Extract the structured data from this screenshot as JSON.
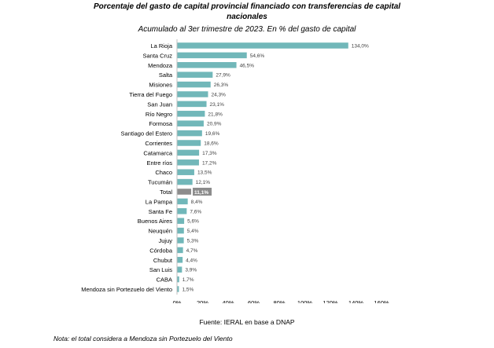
{
  "chart_data": {
    "type": "bar",
    "orientation": "horizontal",
    "title_line1": "Porcentaje del gasto de capital provincial financiado con transferencias de capital",
    "title_line2": "nacionales",
    "subtitle": "Acumulado al 3er trimestre de 2023. En % del gasto de capital",
    "categories": [
      "La Rioja",
      "Santa Cruz",
      "Mendoza",
      "Salta",
      "Misiones",
      "Tierra del Fuego",
      "San Juan",
      "Río Negro",
      "Formosa",
      "Santiago del Estero",
      "Corrientes",
      "Catamarca",
      "Entre ríos",
      "Chaco",
      "Tucumán",
      "Total",
      "La Pampa",
      "Santa Fe",
      "Buenos Aires",
      "Neuquén",
      "Jujuy",
      "Córdoba",
      "Chubut",
      "San Luis",
      "CABA",
      "Mendoza sin Portezuelo del Viento"
    ],
    "values": [
      134.0,
      54.6,
      46.5,
      27.9,
      26.3,
      24.3,
      23.1,
      21.8,
      20.9,
      19.6,
      18.6,
      17.3,
      17.2,
      13.5,
      12.1,
      11.1,
      8.4,
      7.6,
      5.6,
      5.4,
      5.3,
      4.7,
      4.4,
      3.9,
      1.7,
      1.5
    ],
    "value_labels": [
      "134,0%",
      "54,6%",
      "46,5%",
      "27,9%",
      "26,3%",
      "24,3%",
      "23,1%",
      "21,8%",
      "20,9%",
      "19,6%",
      "18,6%",
      "17,3%",
      "17,2%",
      "13,5%",
      "12,1%",
      "11,1%",
      "8,4%",
      "7,6%",
      "5,6%",
      "5,4%",
      "5,3%",
      "4,7%",
      "4,4%",
      "3,9%",
      "1,7%",
      "1,5%"
    ],
    "highlight_category": "Total",
    "xlim": [
      0,
      160
    ],
    "x_ticks": [
      "0%",
      "20%",
      "40%",
      "60%",
      "80%",
      "100%",
      "120%",
      "140%",
      "160%"
    ],
    "grid": false,
    "colors": {
      "bar": "#71b7b9",
      "highlight": "#8c8c8c",
      "axis": "#bfbfbf"
    }
  },
  "footer": {
    "source": "Fuente: IERAL en base a DNAP",
    "note": "Nota: el total considera a Mendoza sin Portezuelo del Viento"
  }
}
